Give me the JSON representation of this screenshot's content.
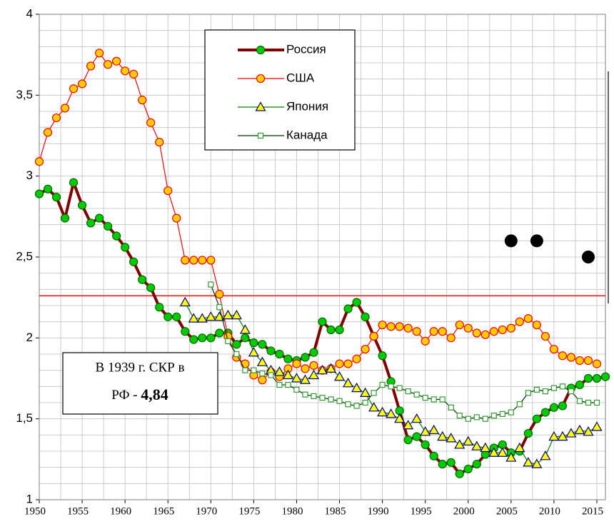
{
  "chart_data": {
    "type": "line",
    "x": [
      1950,
      1951,
      1952,
      1953,
      1954,
      1955,
      1956,
      1957,
      1958,
      1959,
      1960,
      1961,
      1962,
      1963,
      1964,
      1965,
      1966,
      1967,
      1968,
      1969,
      1970,
      1971,
      1972,
      1973,
      1974,
      1975,
      1976,
      1977,
      1978,
      1979,
      1980,
      1981,
      1982,
      1983,
      1984,
      1985,
      1986,
      1987,
      1988,
      1989,
      1990,
      1991,
      1992,
      1993,
      1994,
      1995,
      1996,
      1997,
      1998,
      1999,
      2000,
      2001,
      2002,
      2003,
      2004,
      2005,
      2006,
      2007,
      2008,
      2009,
      2010,
      2011,
      2012,
      2013,
      2014,
      2015,
      2016
    ],
    "series": [
      {
        "name": "Россия",
        "color": "#800000",
        "marker": "circle",
        "marker_fill": "#00cc00",
        "marker_stroke": "#006600",
        "line_width": 4,
        "values": [
          2.89,
          2.92,
          2.87,
          2.74,
          2.96,
          2.82,
          2.71,
          2.74,
          2.69,
          2.63,
          2.56,
          2.47,
          2.36,
          2.31,
          2.19,
          2.13,
          2.13,
          2.04,
          1.99,
          2.0,
          2.0,
          2.03,
          2.03,
          1.96,
          2.0,
          1.97,
          1.96,
          1.92,
          1.9,
          1.87,
          1.86,
          1.88,
          1.91,
          2.1,
          2.05,
          2.05,
          2.18,
          2.22,
          2.13,
          2.01,
          1.89,
          1.73,
          1.55,
          1.37,
          1.39,
          1.34,
          1.27,
          1.22,
          1.23,
          1.16,
          1.19,
          1.22,
          1.28,
          1.32,
          1.34,
          1.29,
          1.3,
          1.41,
          1.5,
          1.54,
          1.57,
          1.58,
          1.69,
          1.71,
          1.75,
          1.75,
          1.76
        ]
      },
      {
        "name": "США",
        "color": "#ff0000",
        "marker": "circle",
        "marker_fill": "#ffcc00",
        "marker_stroke": "#ff0000",
        "line_width": 1.2,
        "values": [
          3.09,
          3.27,
          3.36,
          3.42,
          3.54,
          3.57,
          3.68,
          3.76,
          3.69,
          3.71,
          3.65,
          3.63,
          3.47,
          3.33,
          3.21,
          2.91,
          2.74,
          2.48,
          2.48,
          2.48,
          2.48,
          2.27,
          2.01,
          1.88,
          1.84,
          1.77,
          1.74,
          1.79,
          1.76,
          1.81,
          1.84,
          1.81,
          1.83,
          1.8,
          1.81,
          1.84,
          1.84,
          1.87,
          1.93,
          2.01,
          2.08,
          2.07,
          2.07,
          2.06,
          2.04,
          1.98,
          2.04,
          2.04,
          2.0,
          2.08,
          2.06,
          2.03,
          2.02,
          2.04,
          2.05,
          2.06,
          2.1,
          2.12,
          2.08,
          2.01,
          1.93,
          1.89,
          1.88,
          1.86,
          1.86,
          1.84,
          null
        ]
      },
      {
        "name": "Япония",
        "color": "#008000",
        "marker": "triangle",
        "marker_fill": "#ffff00",
        "marker_stroke": "#000080",
        "line_width": 1.2,
        "values": [
          null,
          null,
          null,
          null,
          null,
          null,
          null,
          null,
          null,
          null,
          null,
          null,
          null,
          null,
          null,
          null,
          null,
          2.22,
          2.12,
          2.12,
          2.13,
          2.13,
          2.14,
          2.14,
          2.05,
          1.91,
          1.85,
          1.8,
          1.79,
          1.77,
          1.75,
          1.74,
          1.77,
          1.8,
          1.81,
          1.76,
          1.72,
          1.69,
          1.66,
          1.57,
          1.54,
          1.53,
          1.5,
          1.46,
          1.5,
          1.42,
          1.43,
          1.39,
          1.38,
          1.34,
          1.36,
          1.33,
          1.32,
          1.29,
          1.29,
          1.26,
          1.32,
          1.23,
          1.22,
          1.27,
          1.39,
          1.39,
          1.41,
          1.43,
          1.42,
          1.45,
          null
        ]
      },
      {
        "name": "Канада",
        "color": "#003300",
        "marker": "square",
        "marker_fill": "#ffffff",
        "marker_stroke": "#339933",
        "line_width": 1.2,
        "values": [
          null,
          null,
          null,
          null,
          null,
          null,
          null,
          null,
          null,
          null,
          null,
          null,
          null,
          null,
          null,
          null,
          null,
          null,
          null,
          null,
          2.33,
          2.19,
          1.98,
          1.9,
          1.8,
          1.8,
          1.78,
          1.77,
          1.71,
          1.71,
          1.68,
          1.65,
          1.64,
          1.63,
          1.62,
          1.61,
          1.59,
          1.58,
          1.6,
          1.66,
          1.71,
          1.7,
          1.69,
          1.67,
          1.65,
          1.63,
          1.62,
          1.62,
          1.57,
          1.52,
          1.5,
          1.51,
          1.5,
          1.52,
          1.53,
          1.54,
          1.59,
          1.66,
          1.68,
          1.67,
          1.69,
          1.7,
          1.67,
          1.61,
          1.6,
          1.6,
          null
        ]
      }
    ],
    "markers": {
      "x": [
        2005,
        2008,
        2014
      ],
      "values": [
        2.6,
        2.6,
        2.5
      ],
      "color": "#000000"
    },
    "reference_line": {
      "value": 2.26,
      "color": "#ff0000"
    },
    "annotation": [
      "В 1939 г. СКР в",
      "РФ - ",
      "4,84"
    ],
    "xlim": [
      1950,
      2016
    ],
    "ylim": [
      1,
      4
    ],
    "xticks": [
      1950,
      1955,
      1960,
      1965,
      1970,
      1975,
      1980,
      1985,
      1990,
      1995,
      2000,
      2005,
      2010,
      2015
    ],
    "yticks": [
      1,
      {
        "value": 1.5,
        "label": "1,5"
      },
      2,
      {
        "value": 2.5,
        "label": "2,5"
      },
      3,
      {
        "value": 3.5,
        "label": "3,5"
      },
      4
    ],
    "grid": true
  }
}
